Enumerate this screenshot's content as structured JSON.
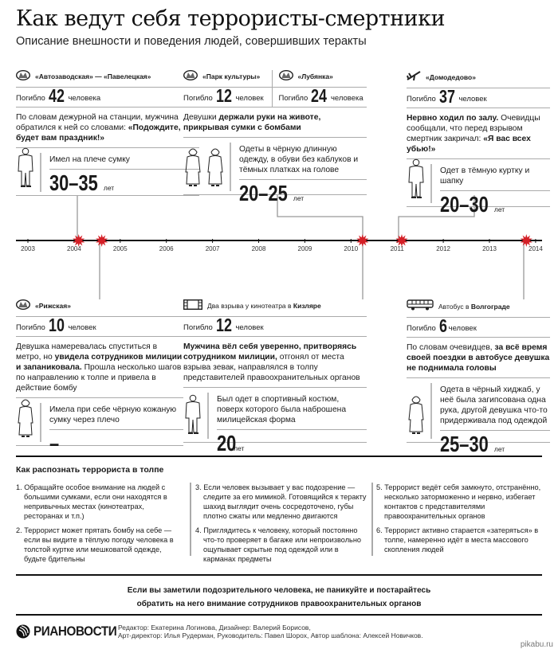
{
  "title": "Как ведут себя террористы-смертники",
  "subtitle": "Описание внешности и поведения людей, совершивших теракты",
  "colors": {
    "marker": "#d42027",
    "line": "#aaaaaa",
    "text": "#1a1a1a"
  },
  "timeline": {
    "years": [
      "2003",
      "2004",
      "2005",
      "2006",
      "2007",
      "2008",
      "2009",
      "2010",
      "2011",
      "2012",
      "2013",
      "2014"
    ],
    "markers": [
      2004.1,
      2004.6,
      2010.25,
      2011.1,
      2013.8
    ]
  },
  "events": [
    {
      "headers": [
        {
          "icon": "metro-icon",
          "label": [
            {
              "t": "«Автозаводская» — «Павелецкая»",
              "b": true
            }
          ],
          "killed_prefix": "Погибло",
          "killed": "42",
          "killed_unit": "человека"
        }
      ],
      "description": [
        {
          "t": "По словам дежурной на станции, мужчина обратился к ней со словами: ",
          "b": false
        },
        {
          "t": "«Подождите, будет вам праздник!»",
          "b": true
        }
      ],
      "figures": [
        "male"
      ],
      "note": "Имел на плече сумку",
      "age": "30–35",
      "age_unit": "лет"
    },
    {
      "headers": [
        {
          "icon": "metro-icon",
          "label": [
            {
              "t": "«Парк культуры»",
              "b": true
            }
          ],
          "killed_prefix": "Погибло",
          "killed": "12",
          "killed_unit": "человек"
        },
        {
          "icon": "metro-icon",
          "label": [
            {
              "t": "«Лубянка»",
              "b": true
            }
          ],
          "killed_prefix": "Погибло",
          "killed": "24",
          "killed_unit": "человека"
        }
      ],
      "description": [
        {
          "t": "Девушки ",
          "b": false
        },
        {
          "t": "держали руки на животе, прикрывая сумки с бомбами",
          "b": true
        }
      ],
      "figures": [
        "female",
        "female"
      ],
      "note": "Одеты в чёрную длинную одежду, в обуви без каблуков и тёмных платках на голове",
      "age": "20–25",
      "age_unit": "лет"
    },
    {
      "headers": [
        {
          "icon": "plane-icon",
          "label": [
            {
              "t": "«Домодедово»",
              "b": true
            }
          ],
          "killed_prefix": "Погибло",
          "killed": "37",
          "killed_unit": "человек"
        }
      ],
      "description": [
        {
          "t": "Нервно ходил по залу. ",
          "b": true
        },
        {
          "t": "Очевидцы сообщали, что перед взрывом смертник закричал: ",
          "b": false
        },
        {
          "t": "«Я вас всех убью!»",
          "b": true
        }
      ],
      "figures": [
        "male"
      ],
      "note": "Одет в тёмную куртку и шапку",
      "age": "20–30",
      "age_unit": "лет"
    },
    {
      "headers": [
        {
          "icon": "metro-icon",
          "label": [
            {
              "t": "«Рижская»",
              "b": true
            }
          ],
          "killed_prefix": "Погибло",
          "killed": "10",
          "killed_unit": "человек"
        }
      ],
      "description": [
        {
          "t": "Девушка намеревалась спуститься в метро, но ",
          "b": false
        },
        {
          "t": "увидела сотрудников милиции и запаниковала.",
          "b": true
        },
        {
          "t": " Прошла несколько шагов по направлению к толпе и привела в действие бомбу",
          "b": false
        }
      ],
      "figures": [
        "female"
      ],
      "note": "Имела при себе чёрную кожаную сумку через плечо",
      "age": "–",
      "age_unit": ""
    },
    {
      "headers": [
        {
          "icon": "film-icon",
          "label": [
            {
              "t": "Два взрыва у кинотеатра в ",
              "b": false
            },
            {
              "t": "Кизляре",
              "b": true
            }
          ],
          "killed_prefix": "Погибло",
          "killed": "12",
          "killed_unit": "человек"
        }
      ],
      "description": [
        {
          "t": "Мужчина вёл себя уверенно, притворяясь сотрудником милиции,",
          "b": true
        },
        {
          "t": " отгонял от места взрыва зевак, направлялся в толпу представителей правоохранительных органов",
          "b": false
        }
      ],
      "figures": [
        "male"
      ],
      "note": "Был одет в спортивный костюм, поверх которого была наброшена милицейская форма",
      "age": "20",
      "age_unit": "лет"
    },
    {
      "headers": [
        {
          "icon": "bus-icon",
          "label": [
            {
              "t": "Автобус в ",
              "b": false
            },
            {
              "t": "Волгограде",
              "b": true
            }
          ],
          "killed_prefix": "Погибло",
          "killed": "6",
          "killed_unit": "человек"
        }
      ],
      "description": [
        {
          "t": "По словам очевидцев, ",
          "b": false
        },
        {
          "t": "за всё время своей поездки в автобусе девушка не поднимала головы",
          "b": true
        }
      ],
      "figures": [
        "female"
      ],
      "note": "Одета в чёрный хиджаб, у неё была загипсована одна рука, другой девушка что-то придерживала под одеждой",
      "age": "25–30",
      "age_unit": "лет"
    }
  ],
  "tips": {
    "title": "Как распознать террориста в толпе",
    "items": [
      "1. Обращайте особое внимание на людей с большими сумками, если они находятся в непривычных местах (кинотеатрах, ресторанах и т.п.)",
      "2. Террорист может прятать бомбу на себе — если вы видите в тёплую погоду человека в толстой куртке или мешковатой одежде, будьте бдительны",
      "3. Если человек вызывает у вас подозрение — следите за его мимикой. Готовящийся к теракту шахид выглядит очень сосредоточено, губы плотно сжаты или медленно двигаются",
      "4. Приглядитесь к человеку, который постоянно что-то проверяет в багаже или непроизвольно ощупывает скрытые под одеждой или в карманах предметы",
      "5. Террорист ведёт себя замкнуто, отстранённо, несколько заторможенно и нервно, избегает контактов с представителями правоохранительных органов",
      "6. Террорист активно старается «затеряться» в толпе, намеренно идёт в места массового скопления людей"
    ]
  },
  "notice": [
    "Если вы заметили подозрительного человека, не паникуйте и постарайтесь",
    "обратить на него внимание сотрудников правоохранительных органов"
  ],
  "footer": {
    "logo": "РИАНОВОСТИ",
    "credits": [
      "Редактор: Екатерина Логинова, Дизайнер: Валерий Борисов,",
      "Арт-директор: Илья Рудерман, Руководитель: Павел Шорох, Автор шаблона: Алексей Новичков."
    ],
    "watermark": "pikabu.ru"
  }
}
